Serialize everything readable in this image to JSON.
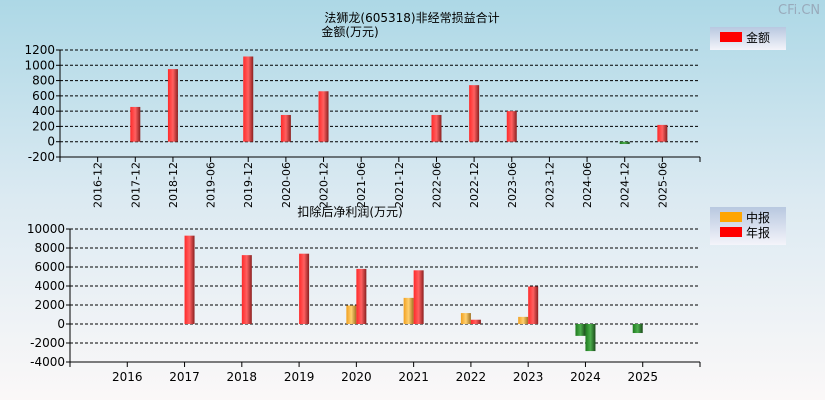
{
  "watermark": "CFi.CN",
  "chart_data": [
    {
      "type": "bar",
      "title": "法狮龙(605318)非经常损益合计",
      "ylabel": "金额(万元)",
      "ylim": [
        -200,
        1200
      ],
      "yticks": [
        -200,
        0,
        200,
        400,
        600,
        800,
        1000,
        1200
      ],
      "grid": true,
      "legend_position": "top-right",
      "categories": [
        "2016-12",
        "2017-12",
        "2018-12",
        "2019-06",
        "2019-12",
        "2020-06",
        "2020-12",
        "2021-06",
        "2021-12",
        "2022-06",
        "2022-12",
        "2023-06",
        "2023-12",
        "2024-06",
        "2024-12",
        "2025-06"
      ],
      "series": [
        {
          "name": "金额",
          "color": "#ff0000",
          "values": [
            0,
            455,
            950,
            0,
            1115,
            350,
            660,
            0,
            0,
            350,
            740,
            400,
            0,
            0,
            -30,
            220
          ]
        }
      ]
    },
    {
      "type": "bar",
      "title": "扣除后净利润(万元)",
      "ylim": [
        -4000,
        10000
      ],
      "yticks": [
        -4000,
        -2000,
        0,
        2000,
        4000,
        6000,
        8000,
        10000
      ],
      "grid": true,
      "legend_position": "top-right",
      "categories": [
        "2016",
        "2017",
        "2018",
        "2019",
        "2020",
        "2021",
        "2022",
        "2023",
        "2024",
        "2025"
      ],
      "series": [
        {
          "name": "中报",
          "color": "#ffa500",
          "values": [
            null,
            null,
            null,
            null,
            1950,
            2750,
            1150,
            750,
            -1250,
            -950
          ]
        },
        {
          "name": "年报",
          "color": "#ff0000",
          "values": [
            null,
            9300,
            7250,
            7400,
            5800,
            5650,
            450,
            3950,
            -2850,
            null
          ]
        }
      ],
      "negative_color": "#2e8b2e"
    }
  ]
}
